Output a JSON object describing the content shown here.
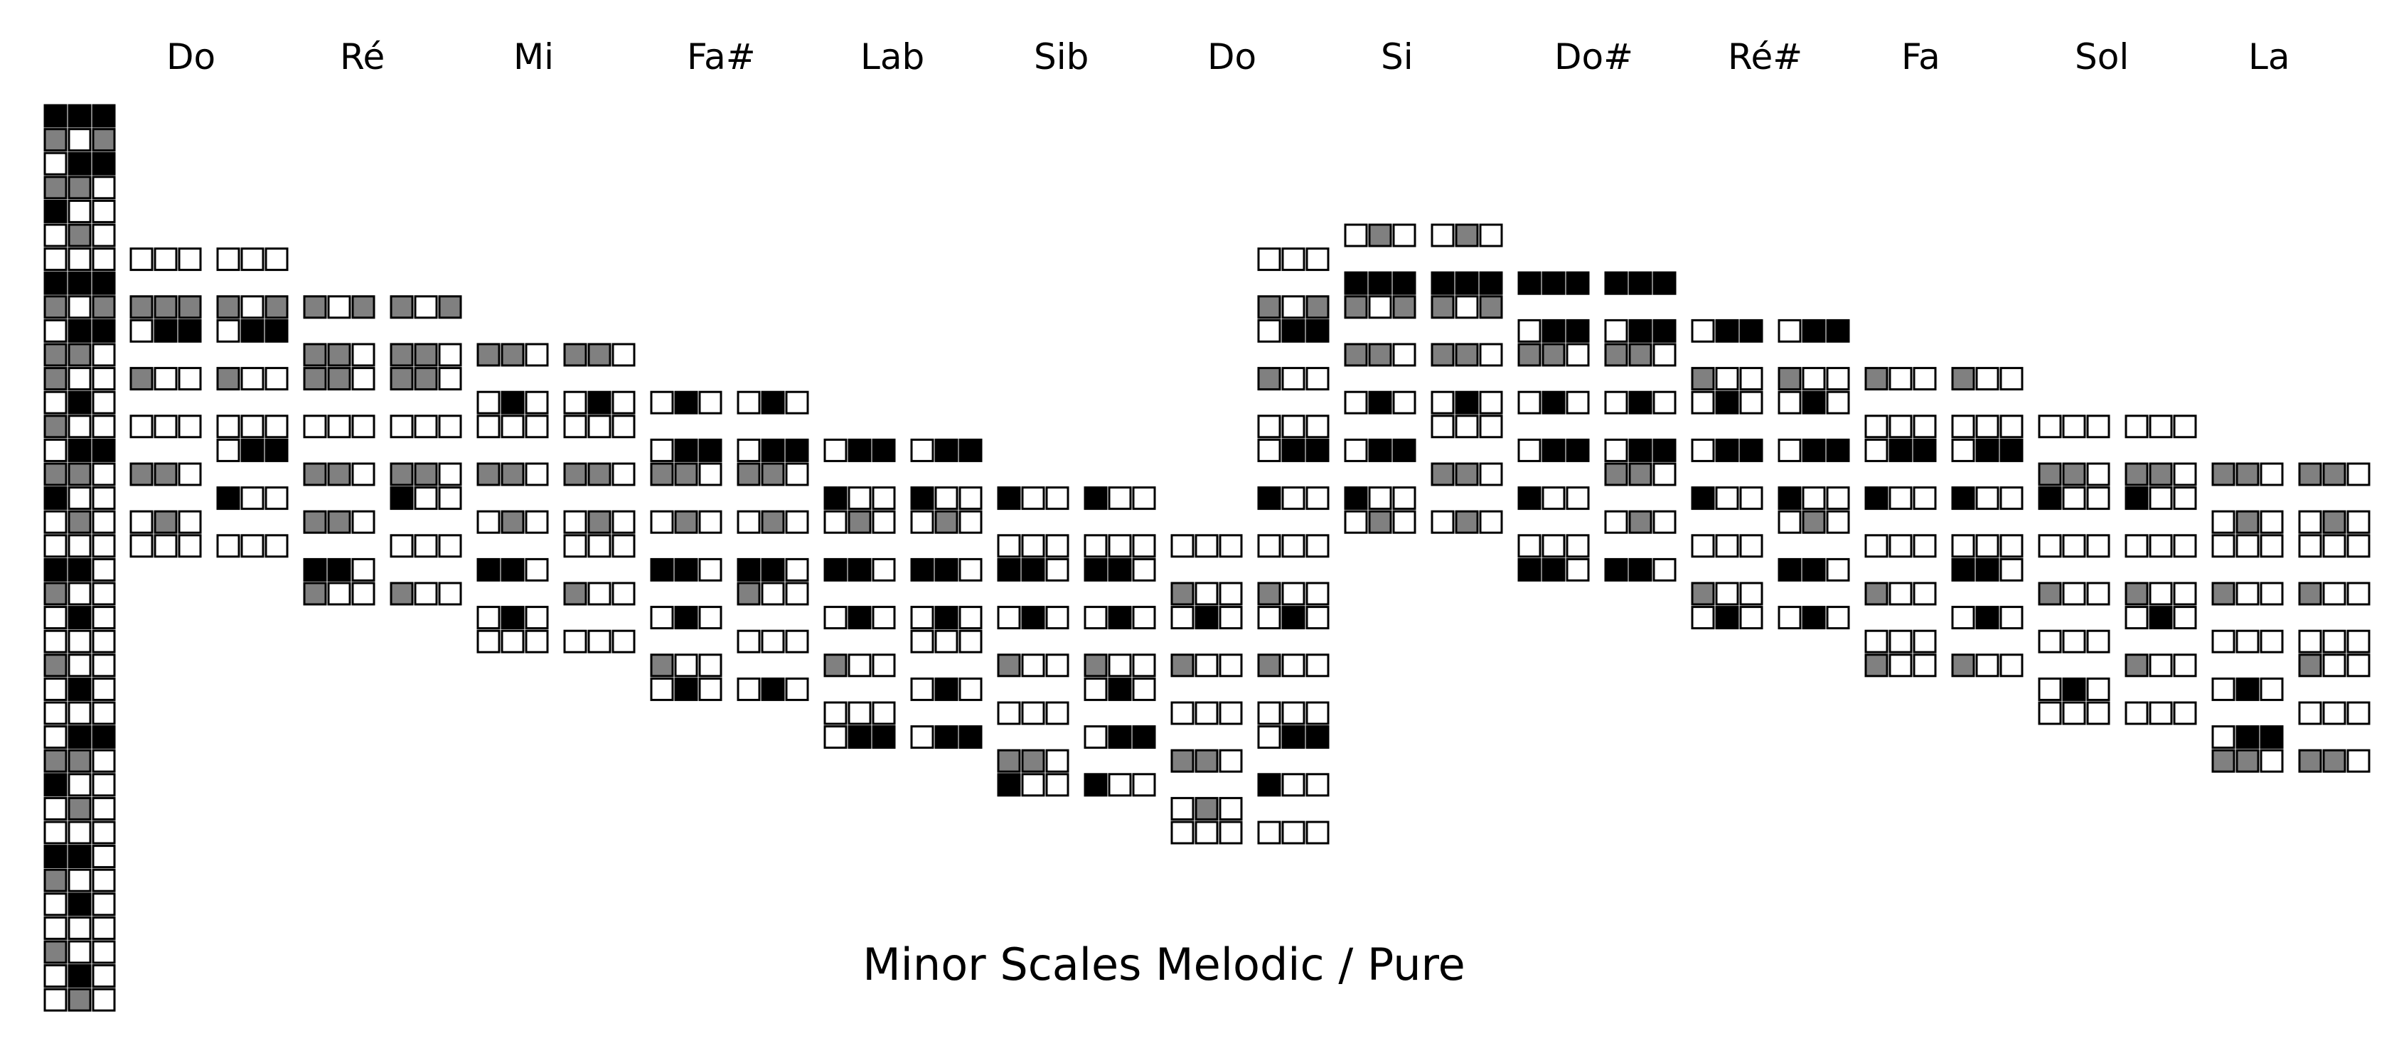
{
  "title": "Minor Scales Melodic / Pure",
  "colors": {
    "white": "#ffffff",
    "black": "#000000",
    "gray": "#808080",
    "stroke": "#000000"
  },
  "legend": [
    "BBB",
    "GWG",
    "WBB",
    "GGW",
    "BWW",
    "WGW",
    "WWW",
    "BBB",
    "GWG",
    "WBB",
    "GGW",
    "GWW",
    "WBW",
    "GWW",
    "WBB",
    "GGW",
    "BWW",
    "WGW",
    "WWW",
    "BBW",
    "GWW",
    "WBW",
    "WWW",
    "GWW",
    "WBW",
    "WWW",
    "WBB",
    "GGW",
    "BWW",
    "WGW",
    "WWW",
    "BBW",
    "GWW",
    "WBW",
    "WWW",
    "GWW",
    "WBW",
    "WGW"
  ],
  "columns": [
    {
      "label": "Do",
      "pair": [
        {
          "6": "WWW",
          "8": "GGG",
          "9": "WBB",
          "11": "GWW",
          "13": "WWW",
          "15": "GGW",
          "17": "WGW",
          "18": "WWW"
        },
        {
          "6": "WWW",
          "8": "GWG",
          "9": "WBB",
          "11": "GWW",
          "13": "WWW",
          "14": "WBB",
          "16": "BWW",
          "18": "WWW"
        }
      ]
    },
    {
      "label": "Ré",
      "pair": [
        {
          "8": "GWG",
          "10": "GGW",
          "11": "GGW",
          "13": "WWW",
          "15": "GGW",
          "17": "GGW",
          "19": "BBW",
          "20": "GWW"
        },
        {
          "8": "GWG",
          "10": "GGW",
          "11": "GGW",
          "13": "WWW",
          "15": "GGW",
          "16": "BWW",
          "18": "WWW",
          "20": "GWW"
        }
      ]
    },
    {
      "label": "Mi",
      "pair": [
        {
          "10": "GGW",
          "12": "WBW",
          "13": "WWW",
          "15": "GGW",
          "17": "WGW",
          "19": "BBW",
          "21": "WBW",
          "22": "WWW"
        },
        {
          "10": "GGW",
          "12": "WBW",
          "13": "WWW",
          "15": "GGW",
          "17": "WGW",
          "18": "WWW",
          "20": "GWW",
          "22": "WWW"
        }
      ]
    },
    {
      "label": "Fa#",
      "pair": [
        {
          "12": "WBW",
          "14": "WBB",
          "15": "GGW",
          "17": "WGW",
          "19": "BBW",
          "21": "WBW",
          "23": "GWW",
          "24": "WBW"
        },
        {
          "12": "WBW",
          "14": "WBB",
          "15": "GGW",
          "17": "WGW",
          "19": "BBW",
          "20": "GWW",
          "22": "WWW",
          "24": "WBW"
        }
      ]
    },
    {
      "label": "Lab",
      "pair": [
        {
          "14": "WBB",
          "16": "BWW",
          "17": "WGW",
          "19": "BBW",
          "21": "WBW",
          "23": "GWW",
          "25": "WWW",
          "26": "WBB"
        },
        {
          "14": "WBB",
          "16": "BWW",
          "17": "WGW",
          "19": "BBW",
          "21": "WBW",
          "22": "WWW",
          "24": "WBW",
          "26": "WBB"
        }
      ]
    },
    {
      "label": "Sib",
      "pair": [
        {
          "16": "BWW",
          "18": "WWW",
          "19": "BBW",
          "21": "WBW",
          "23": "GWW",
          "25": "WWW",
          "27": "GGW",
          "28": "BWW"
        },
        {
          "16": "BWW",
          "18": "WWW",
          "19": "BBW",
          "21": "WBW",
          "23": "GWW",
          "24": "WBW",
          "26": "WBB",
          "28": "BWW"
        }
      ]
    },
    {
      "label": "Do",
      "pair": [
        {
          "18": "WWW",
          "20": "GWW",
          "21": "WBW",
          "23": "GWW",
          "25": "WWW",
          "27": "GGW",
          "29": "WGW",
          "30": "WWW"
        },
        {
          "6": "WWW",
          "8": "GWG",
          "9": "WBB",
          "11": "GWW",
          "13": "WWW",
          "14": "WBB",
          "16": "BWW",
          "18": "WWW",
          "20": "GWW",
          "21": "WBW",
          "23": "GWW",
          "25": "WWW",
          "26": "WBB",
          "28": "BWW",
          "30": "WWW"
        }
      ]
    },
    {
      "label": "Si",
      "pair": [
        {
          "5": "WGW",
          "7": "BBB",
          "8": "GWG",
          "10": "GGW",
          "12": "WBW",
          "14": "WBB",
          "16": "BWW",
          "17": "WGW"
        },
        {
          "5": "WGW",
          "7": "BBB",
          "8": "GWG",
          "10": "GGW",
          "12": "WBW",
          "13": "WWW",
          "15": "GGW",
          "17": "WGW"
        }
      ]
    },
    {
      "label": "Do#",
      "pair": [
        {
          "7": "BBB",
          "9": "WBB",
          "10": "GGW",
          "12": "WBW",
          "14": "WBB",
          "16": "BWW",
          "18": "WWW",
          "19": "BBW"
        },
        {
          "7": "BBB",
          "9": "WBB",
          "10": "GGW",
          "12": "WBW",
          "14": "WBB",
          "15": "GGW",
          "17": "WGW",
          "19": "BBW"
        }
      ]
    },
    {
      "label": "Ré#",
      "pair": [
        {
          "9": "WBB",
          "11": "GWW",
          "12": "WBW",
          "14": "WBB",
          "16": "BWW",
          "18": "WWW",
          "20": "GWW",
          "21": "WBW"
        },
        {
          "9": "WBB",
          "11": "GWW",
          "12": "WBW",
          "14": "WBB",
          "16": "BWW",
          "17": "WGW",
          "19": "BBW",
          "21": "WBW"
        }
      ]
    },
    {
      "label": "Fa",
      "pair": [
        {
          "11": "GWW",
          "13": "WWW",
          "14": "WBB",
          "16": "BWW",
          "18": "WWW",
          "20": "GWW",
          "22": "WWW",
          "23": "GWW"
        },
        {
          "11": "GWW",
          "13": "WWW",
          "14": "WBB",
          "16": "BWW",
          "18": "WWW",
          "19": "BBW",
          "21": "WBW",
          "23": "GWW"
        }
      ]
    },
    {
      "label": "Sol",
      "pair": [
        {
          "13": "WWW",
          "15": "GGW",
          "16": "BWW",
          "18": "WWW",
          "20": "GWW",
          "22": "WWW",
          "24": "WBW",
          "25": "WWW"
        },
        {
          "13": "WWW",
          "15": "GGW",
          "16": "BWW",
          "18": "WWW",
          "20": "GWW",
          "21": "WBW",
          "23": "GWW",
          "25": "WWW"
        }
      ]
    },
    {
      "label": "La",
      "pair": [
        {
          "15": "GGW",
          "17": "WGW",
          "18": "WWW",
          "20": "GWW",
          "22": "WWW",
          "24": "WBW",
          "26": "WBB",
          "27": "GGW"
        },
        {
          "15": "GGW",
          "17": "WGW",
          "18": "WWW",
          "20": "GWW",
          "22": "WWW",
          "23": "GWW",
          "25": "WWW",
          "27": "GGW"
        }
      ]
    }
  ]
}
